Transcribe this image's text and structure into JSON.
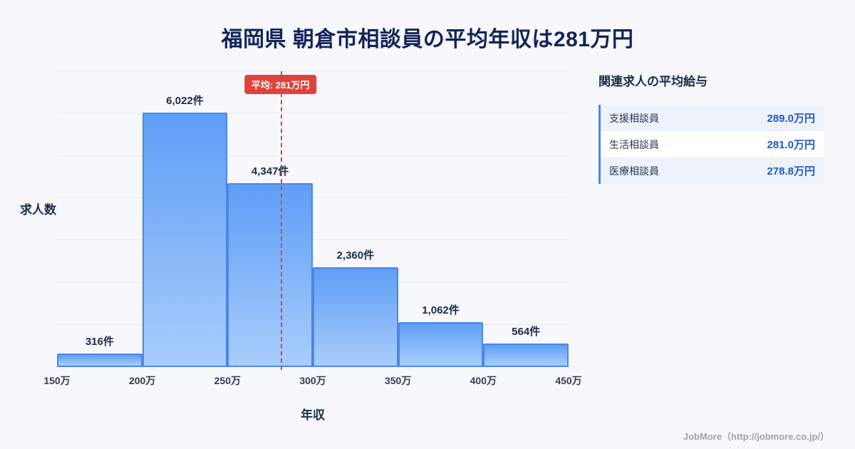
{
  "page": {
    "title": "福岡県 朝倉市相談員の平均年収は281万円",
    "footer": "JobMore（http://jobmore.co.jp/）"
  },
  "chart_data": {
    "type": "bar",
    "title": "福岡県 朝倉市相談員の平均年収は281万円",
    "xlabel": "年収",
    "ylabel": "求人数",
    "x_ticks": [
      "150万",
      "200万",
      "250万",
      "300万",
      "350万",
      "400万",
      "450万"
    ],
    "bin_edges": [
      150,
      200,
      250,
      300,
      350,
      400,
      450
    ],
    "values": [
      316,
      6022,
      4347,
      2360,
      1062,
      564
    ],
    "bar_labels": [
      "316件",
      "6,022件",
      "4,347件",
      "2,360件",
      "1,062件",
      "564件"
    ],
    "ylim": [
      0,
      7000
    ],
    "grid_step": 1000,
    "grid": true,
    "legend": "none",
    "average": {
      "value": 281,
      "label": "平均: 281万円",
      "color": "#e0433b"
    },
    "bar_color_top": "#5e9ef6",
    "bar_color_bottom": "#a9cdfb",
    "bar_border": "#4b87e8"
  },
  "related": {
    "heading": "関連求人の平均給与",
    "rows": [
      {
        "name": "支援相談員",
        "value": "289.0万円"
      },
      {
        "name": "生活相談員",
        "value": "281.0万円"
      },
      {
        "name": "医療相談員",
        "value": "278.8万円"
      }
    ]
  }
}
